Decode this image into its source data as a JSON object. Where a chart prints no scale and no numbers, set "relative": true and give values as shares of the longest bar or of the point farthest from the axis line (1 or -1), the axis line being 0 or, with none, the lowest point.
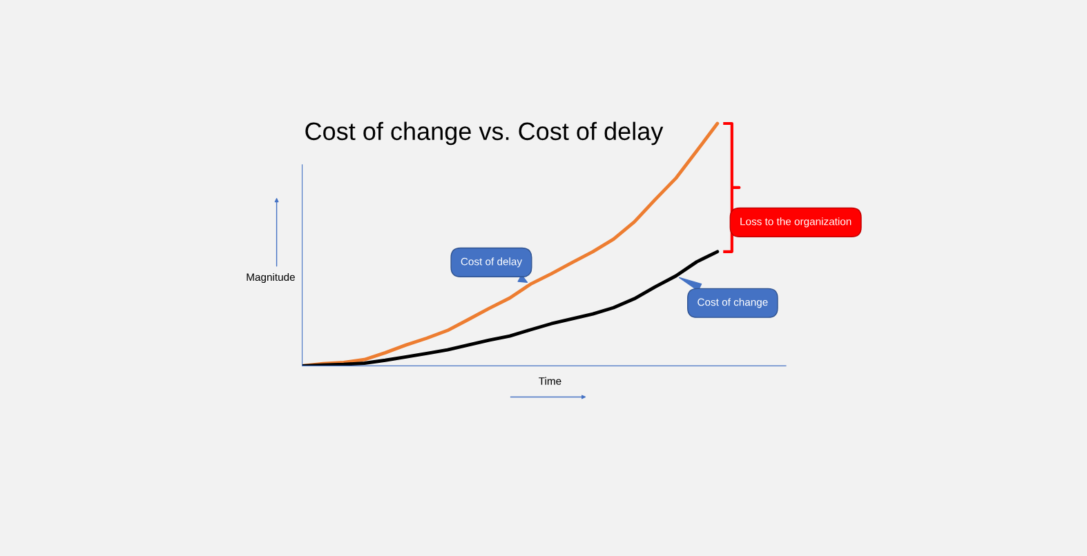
{
  "chart_data": {
    "type": "line",
    "title": "Cost of change vs. Cost of delay",
    "xlabel": "Time",
    "ylabel": "Magnitude",
    "relative": true,
    "categories": [
      null,
      null,
      null,
      null,
      null,
      null,
      null,
      null,
      null,
      null,
      null,
      null,
      null,
      null,
      null,
      null,
      null,
      null,
      null,
      null,
      null
    ],
    "series": [
      {
        "name": "Cost of delay",
        "color": "#ed7d31",
        "values": [
          0,
          0.009,
          0.014,
          0.026,
          0.054,
          0.086,
          0.114,
          0.146,
          0.191,
          0.237,
          0.28,
          0.337,
          0.38,
          0.426,
          0.471,
          0.523,
          0.594,
          0.686,
          0.774,
          0.886,
          1
        ]
      },
      {
        "name": "Cost of change",
        "color": "#000000",
        "values": [
          0,
          0.003,
          0.006,
          0.011,
          0.023,
          0.037,
          0.051,
          0.066,
          0.086,
          0.106,
          0.123,
          0.149,
          0.174,
          0.194,
          0.214,
          0.24,
          0.277,
          0.326,
          0.371,
          0.429,
          0.471
        ]
      }
    ],
    "annotations": [
      "Loss to the organization"
    ],
    "legend": false,
    "grid": false,
    "marker": "none",
    "line_style": "solid"
  }
}
